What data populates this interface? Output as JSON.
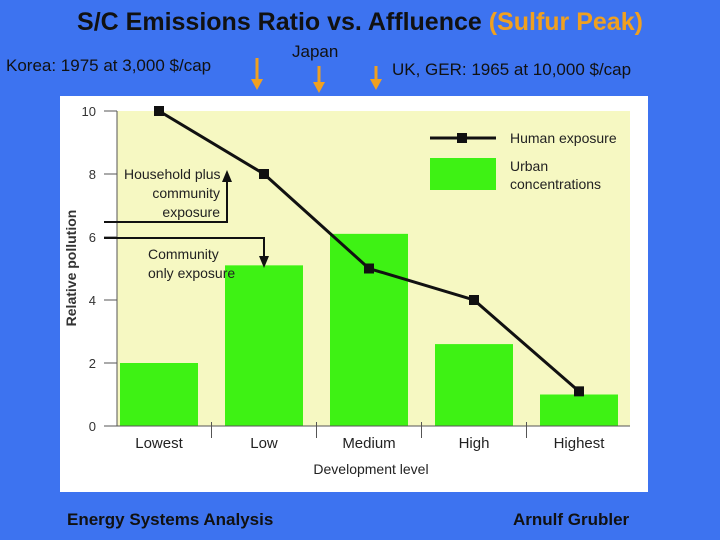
{
  "slide": {
    "title_main": "S/C Emissions Ratio vs. Affluence ",
    "title_highlight": "(Sulfur Peak)",
    "note_korea": "Korea: 1975 at 3,000 $/cap",
    "note_japan": "Japan",
    "note_uk": "UK, GER: 1965 at 10,000 $/cap",
    "footer_left": "Energy Systems Analysis",
    "footer_right": "Arnulf Grubler",
    "colors": {
      "background": "#3d73f0",
      "arrow": "#f0a020",
      "chart_bg": "#f6f8c2",
      "bar": "#3ef214"
    }
  },
  "chart_data": {
    "type": "bar",
    "categories": [
      "Lowest",
      "Low",
      "Medium",
      "High",
      "Highest"
    ],
    "xlabel": "Development level",
    "ylabel": "Relative pollution",
    "ylim": [
      0,
      10
    ],
    "yticks": [
      "0",
      "2",
      "4",
      "6",
      "8",
      "10"
    ],
    "series": [
      {
        "name": "Urban concentrations",
        "type": "bar",
        "values": [
          2.0,
          5.1,
          6.1,
          2.6,
          1.0
        ]
      },
      {
        "name": "Human exposure",
        "type": "line",
        "values": [
          10.0,
          8.0,
          5.0,
          4.0,
          1.1
        ]
      }
    ],
    "annotations": [
      {
        "text_lines": [
          "Household plus",
          "community",
          "exposure"
        ]
      },
      {
        "text_lines": [
          "Community",
          "only exposure"
        ]
      }
    ]
  }
}
